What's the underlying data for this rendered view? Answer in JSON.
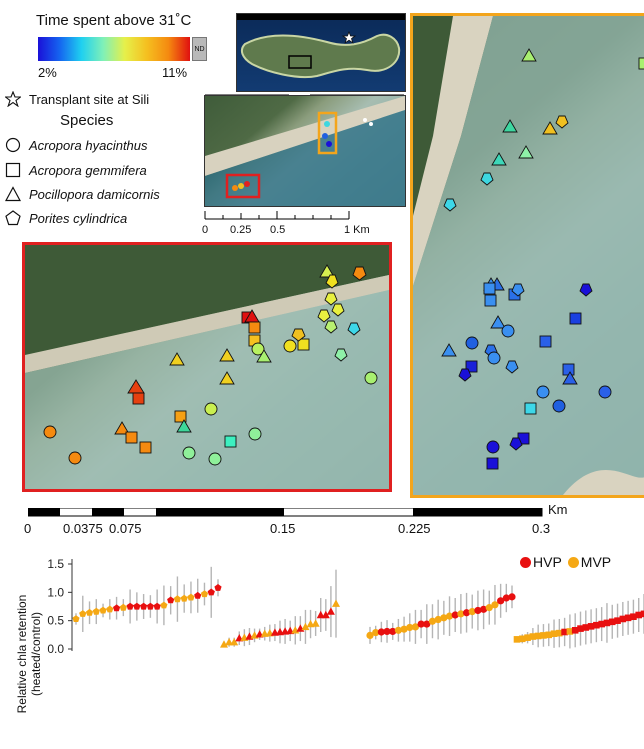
{
  "legend": {
    "title": "Time spent above 31˚C",
    "colorbar_min": "2%",
    "colorbar_max": "11%",
    "nd_label": "ND",
    "colorbar_colors": [
      "#1a10d8",
      "#1fd0f0",
      "#e6f04a",
      "#f58a10",
      "#e01010"
    ],
    "transplant_label": "Transplant site at Sili",
    "species_title": "Species",
    "species": [
      {
        "shape": "circle",
        "name": "Acropora hyacinthus"
      },
      {
        "shape": "square",
        "name": "Acropora gemmifera"
      },
      {
        "shape": "triangle",
        "name": "Pocillopora damicornis"
      },
      {
        "shape": "pentagon",
        "name": "Porites cylindrica"
      }
    ]
  },
  "scale_small": {
    "ticks": [
      "0",
      "0.25",
      "0.5",
      "1 Km"
    ]
  },
  "scale_large": {
    "unit": "Km",
    "ticks": [
      "0",
      "0.0375",
      "0.075",
      "0.15",
      "0.225",
      "0.3"
    ]
  },
  "chart_data": {
    "type": "scatter",
    "ylabel": "Relative chla retention (heated/control)",
    "yticks": [
      "0.0",
      "0.5",
      "1.0",
      "1.5"
    ],
    "ylim": [
      0,
      1.6
    ],
    "series": [
      {
        "name": "HVP",
        "color": "#e81010"
      },
      {
        "name": "MVP",
        "color": "#f5a814"
      }
    ],
    "groups": [
      {
        "marker": "pentagon",
        "points": [
          {
            "y": 0.53,
            "e": 0.1,
            "s": "MVP"
          },
          {
            "y": 0.62,
            "e": 0.32,
            "s": "MVP"
          },
          {
            "y": 0.64,
            "e": 0.2,
            "s": "MVP"
          },
          {
            "y": 0.66,
            "e": 0.22,
            "s": "MVP"
          },
          {
            "y": 0.68,
            "e": 0.12,
            "s": "MVP"
          },
          {
            "y": 0.7,
            "e": 0.18,
            "s": "MVP"
          },
          {
            "y": 0.72,
            "e": 0.2,
            "s": "HVP"
          },
          {
            "y": 0.73,
            "e": 0.15,
            "s": "MVP"
          },
          {
            "y": 0.75,
            "e": 0.3,
            "s": "HVP"
          },
          {
            "y": 0.75,
            "e": 0.25,
            "s": "HVP"
          },
          {
            "y": 0.75,
            "e": 0.22,
            "s": "HVP"
          },
          {
            "y": 0.75,
            "e": 0.2,
            "s": "HVP"
          },
          {
            "y": 0.75,
            "e": 0.3,
            "s": "HVP"
          },
          {
            "y": 0.77,
            "e": 0.35,
            "s": "MVP"
          },
          {
            "y": 0.86,
            "e": 0.25,
            "s": "HVP"
          },
          {
            "y": 0.88,
            "e": 0.4,
            "s": "MVP"
          },
          {
            "y": 0.89,
            "e": 0.25,
            "s": "MVP"
          },
          {
            "y": 0.91,
            "e": 0.28,
            "s": "MVP"
          },
          {
            "y": 0.94,
            "e": 0.3,
            "s": "HVP"
          },
          {
            "y": 0.97,
            "e": 0.2,
            "s": "MVP"
          },
          {
            "y": 1.0,
            "e": 0.45,
            "s": "HVP"
          },
          {
            "y": 1.08,
            "e": 0.15,
            "s": "HVP"
          }
        ]
      },
      {
        "marker": "triangle",
        "points": [
          {
            "y": 0.08,
            "e": 0.05,
            "s": "MVP"
          },
          {
            "y": 0.12,
            "e": 0.08,
            "s": "MVP"
          },
          {
            "y": 0.12,
            "e": 0.08,
            "s": "MVP"
          },
          {
            "y": 0.19,
            "e": 0.12,
            "s": "HVP"
          },
          {
            "y": 0.2,
            "e": 0.15,
            "s": "MVP"
          },
          {
            "y": 0.22,
            "e": 0.15,
            "s": "HVP"
          },
          {
            "y": 0.24,
            "e": 0.12,
            "s": "MVP"
          },
          {
            "y": 0.26,
            "e": 0.1,
            "s": "HVP"
          },
          {
            "y": 0.27,
            "e": 0.12,
            "s": "MVP"
          },
          {
            "y": 0.28,
            "e": 0.15,
            "s": "MVP"
          },
          {
            "y": 0.29,
            "e": 0.15,
            "s": "HVP"
          },
          {
            "y": 0.3,
            "e": 0.2,
            "s": "HVP"
          },
          {
            "y": 0.31,
            "e": 0.22,
            "s": "HVP"
          },
          {
            "y": 0.32,
            "e": 0.18,
            "s": "HVP"
          },
          {
            "y": 0.33,
            "e": 0.25,
            "s": "MVP"
          },
          {
            "y": 0.36,
            "e": 0.22,
            "s": "HVP"
          },
          {
            "y": 0.39,
            "e": 0.3,
            "s": "MVP"
          },
          {
            "y": 0.44,
            "e": 0.25,
            "s": "MVP"
          },
          {
            "y": 0.45,
            "e": 0.22,
            "s": "MVP"
          },
          {
            "y": 0.6,
            "e": 0.3,
            "s": "HVP"
          },
          {
            "y": 0.6,
            "e": 0.28,
            "s": "HVP"
          },
          {
            "y": 0.66,
            "e": 0.45,
            "s": "HVP"
          },
          {
            "y": 0.8,
            "e": 0.6,
            "s": "MVP"
          }
        ]
      },
      {
        "marker": "circle",
        "points": [
          {
            "y": 0.24,
            "e": 0.15,
            "s": "MVP"
          },
          {
            "y": 0.29,
            "e": 0.12,
            "s": "MVP"
          },
          {
            "y": 0.3,
            "e": 0.18,
            "s": "HVP"
          },
          {
            "y": 0.31,
            "e": 0.2,
            "s": "HVP"
          },
          {
            "y": 0.31,
            "e": 0.15,
            "s": "HVP"
          },
          {
            "y": 0.33,
            "e": 0.2,
            "s": "MVP"
          },
          {
            "y": 0.35,
            "e": 0.22,
            "s": "MVP"
          },
          {
            "y": 0.38,
            "e": 0.25,
            "s": "MVP"
          },
          {
            "y": 0.39,
            "e": 0.3,
            "s": "MVP"
          },
          {
            "y": 0.44,
            "e": 0.25,
            "s": "HVP"
          },
          {
            "y": 0.44,
            "e": 0.35,
            "s": "HVP"
          },
          {
            "y": 0.49,
            "e": 0.3,
            "s": "MVP"
          },
          {
            "y": 0.52,
            "e": 0.35,
            "s": "MVP"
          },
          {
            "y": 0.55,
            "e": 0.3,
            "s": "MVP"
          },
          {
            "y": 0.58,
            "e": 0.35,
            "s": "MVP"
          },
          {
            "y": 0.6,
            "e": 0.3,
            "s": "HVP"
          },
          {
            "y": 0.62,
            "e": 0.35,
            "s": "MVP"
          },
          {
            "y": 0.64,
            "e": 0.35,
            "s": "HVP"
          },
          {
            "y": 0.66,
            "e": 0.3,
            "s": "MVP"
          },
          {
            "y": 0.68,
            "e": 0.35,
            "s": "HVP"
          },
          {
            "y": 0.7,
            "e": 0.35,
            "s": "HVP"
          },
          {
            "y": 0.73,
            "e": 0.3,
            "s": "MVP"
          },
          {
            "y": 0.78,
            "e": 0.35,
            "s": "MVP"
          },
          {
            "y": 0.85,
            "e": 0.3,
            "s": "HVP"
          },
          {
            "y": 0.9,
            "e": 0.25,
            "s": "HVP"
          },
          {
            "y": 0.92,
            "e": 0.2,
            "s": "HVP"
          }
        ]
      },
      {
        "marker": "square",
        "points": [
          {
            "y": 0.17,
            "e": 0.05,
            "s": "MVP"
          },
          {
            "y": 0.18,
            "e": 0.08,
            "s": "MVP"
          },
          {
            "y": 0.2,
            "e": 0.1,
            "s": "MVP"
          },
          {
            "y": 0.22,
            "e": 0.15,
            "s": "MVP"
          },
          {
            "y": 0.23,
            "e": 0.2,
            "s": "MVP"
          },
          {
            "y": 0.24,
            "e": 0.2,
            "s": "MVP"
          },
          {
            "y": 0.25,
            "e": 0.2,
            "s": "MVP"
          },
          {
            "y": 0.27,
            "e": 0.25,
            "s": "MVP"
          },
          {
            "y": 0.28,
            "e": 0.25,
            "s": "MVP"
          },
          {
            "y": 0.3,
            "e": 0.25,
            "s": "HVP"
          },
          {
            "y": 0.31,
            "e": 0.3,
            "s": "MVP"
          },
          {
            "y": 0.33,
            "e": 0.3,
            "s": "HVP"
          },
          {
            "y": 0.36,
            "e": 0.3,
            "s": "HVP"
          },
          {
            "y": 0.38,
            "e": 0.3,
            "s": "HVP"
          },
          {
            "y": 0.4,
            "e": 0.3,
            "s": "HVP"
          },
          {
            "y": 0.42,
            "e": 0.3,
            "s": "HVP"
          },
          {
            "y": 0.44,
            "e": 0.3,
            "s": "HVP"
          },
          {
            "y": 0.46,
            "e": 0.35,
            "s": "HVP"
          },
          {
            "y": 0.48,
            "e": 0.3,
            "s": "HVP"
          },
          {
            "y": 0.5,
            "e": 0.3,
            "s": "HVP"
          },
          {
            "y": 0.53,
            "e": 0.3,
            "s": "HVP"
          },
          {
            "y": 0.55,
            "e": 0.3,
            "s": "HVP"
          },
          {
            "y": 0.57,
            "e": 0.3,
            "s": "HVP"
          },
          {
            "y": 0.6,
            "e": 0.3,
            "s": "HVP"
          },
          {
            "y": 0.62,
            "e": 0.35,
            "s": "HVP"
          }
        ]
      }
    ]
  }
}
